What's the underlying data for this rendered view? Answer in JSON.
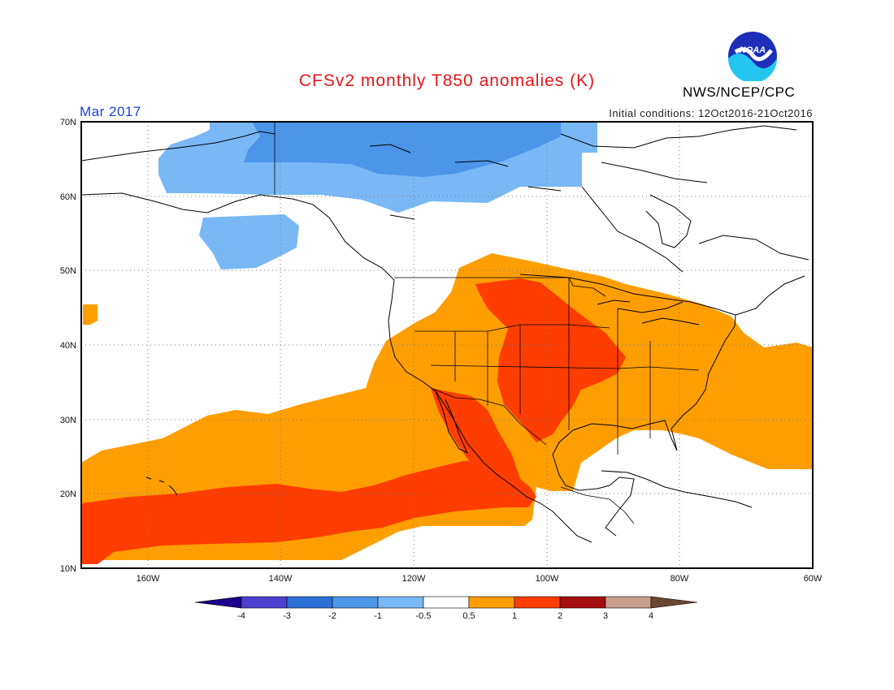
{
  "header": {
    "title": "CFSv2 monthly T850 anomalies (K)",
    "agency": "NWS/NCEP/CPC",
    "logo_text": "NOAA",
    "valid_month": "Mar 2017",
    "initial_conditions": "Initial conditions: 12Oct2016-21Oct2016"
  },
  "map": {
    "lon_range": [
      -170,
      -60
    ],
    "lat_range": [
      10,
      70
    ],
    "lon_labels": [
      "160W",
      "140W",
      "120W",
      "100W",
      "80W",
      "60W"
    ],
    "lat_labels": [
      "10N",
      "20N",
      "30N",
      "40N",
      "50N",
      "60N",
      "70N"
    ],
    "grid": "dotted"
  },
  "colorbar": {
    "labels": [
      "-4",
      "-3",
      "-2",
      "-1",
      "-0.5",
      "0.5",
      "1",
      "2",
      "3",
      "4"
    ],
    "colors": [
      "#1a008c",
      "#4b3fcf",
      "#2d6fd6",
      "#4c95e8",
      "#79b8f5",
      "#ffffff",
      "#ff9e00",
      "#ff3d00",
      "#a50f0f",
      "#c79d8c",
      "#6b4632"
    ]
  }
}
